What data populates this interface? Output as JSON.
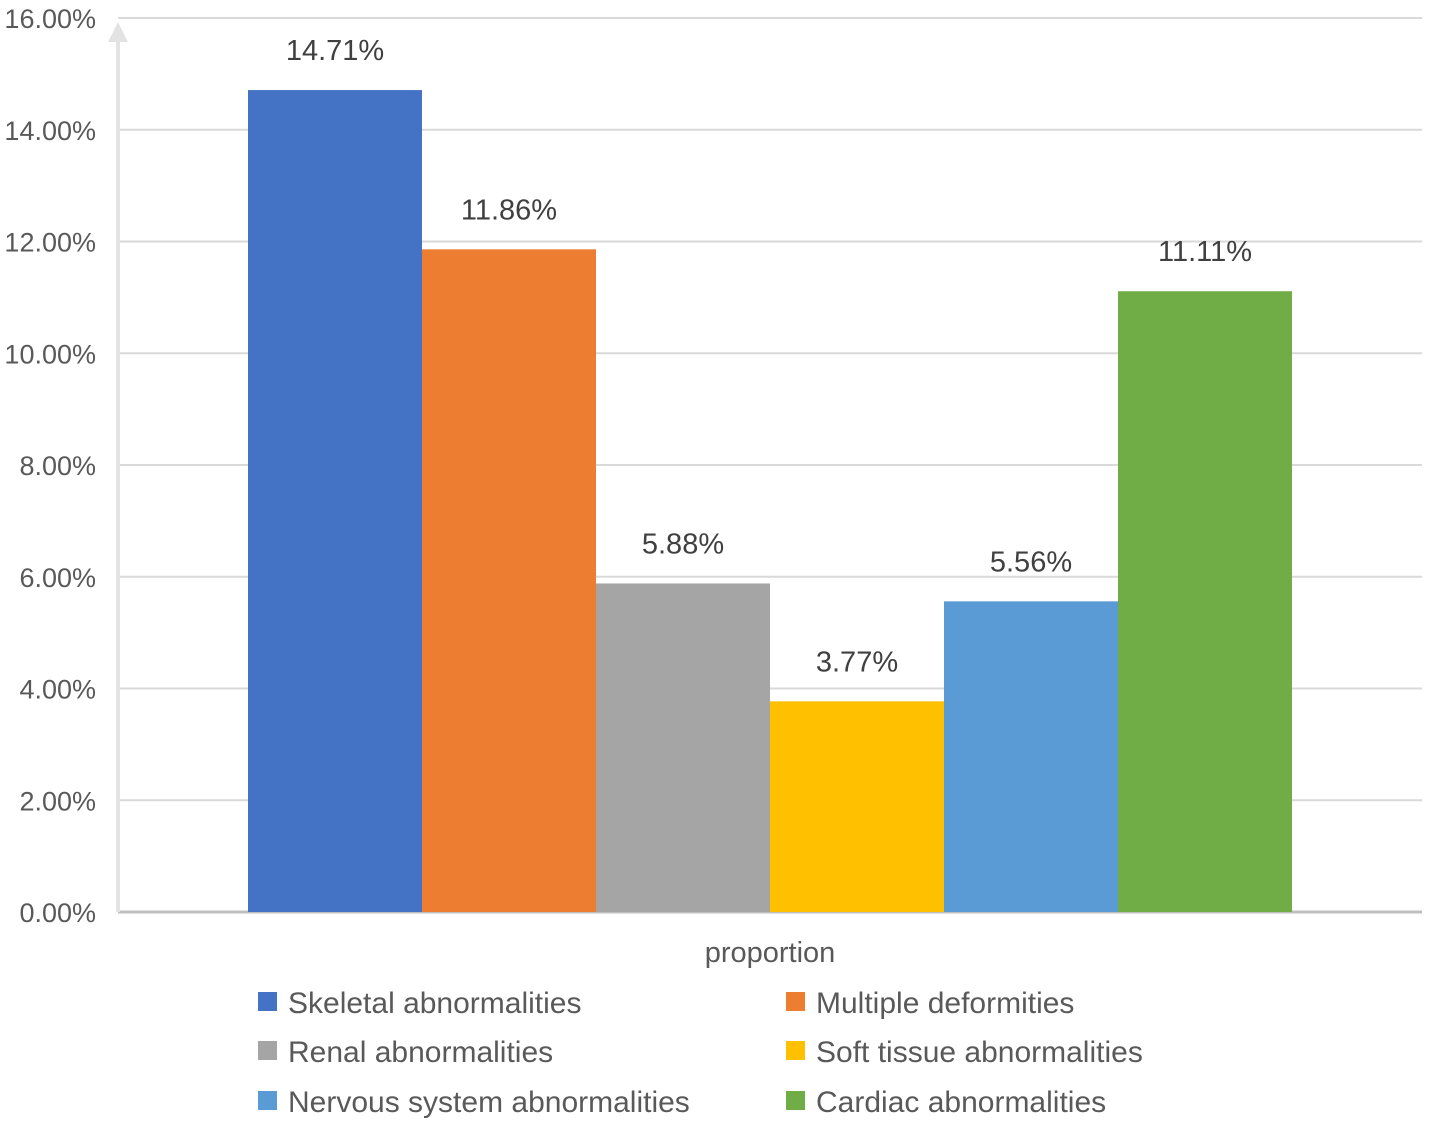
{
  "chart_data": {
    "type": "bar",
    "categories": [
      "proportion"
    ],
    "series": [
      {
        "name": "Skeletal abnormalities",
        "values": [
          14.71
        ],
        "label": "14.71%",
        "color": "#4472C4"
      },
      {
        "name": "Multiple deformities",
        "values": [
          11.86
        ],
        "label": "11.86%",
        "color": "#ED7D31"
      },
      {
        "name": "Renal abnormalities",
        "values": [
          5.88
        ],
        "label": "5.88%",
        "color": "#A5A5A5"
      },
      {
        "name": "Soft tissue abnormalities",
        "values": [
          3.77
        ],
        "label": "3.77%",
        "color": "#FFC000"
      },
      {
        "name": "Nervous system abnormalities",
        "values": [
          5.56
        ],
        "label": "5.56%",
        "color": "#5B9BD5"
      },
      {
        "name": "Cardiac abnormalities",
        "values": [
          11.11
        ],
        "label": "11.11%",
        "color": "#70AD47"
      }
    ],
    "yticks": [
      0,
      2,
      4,
      6,
      8,
      10,
      12,
      14,
      16
    ],
    "ytick_labels": [
      "0.00%",
      "2.00%",
      "4.00%",
      "6.00%",
      "8.00%",
      "10.00%",
      "12.00%",
      "14.00%",
      "16.00%"
    ],
    "ylim": [
      0,
      16
    ],
    "xlabel": "",
    "ylabel": "",
    "title": "",
    "grid": true,
    "legend_position": "bottom"
  }
}
